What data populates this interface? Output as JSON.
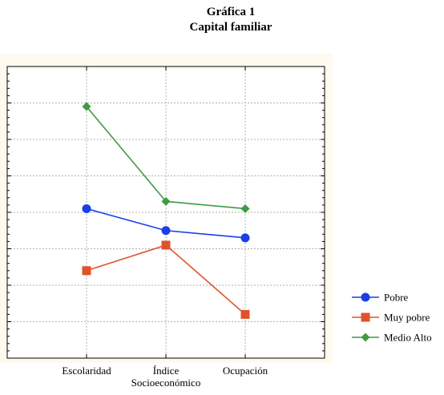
{
  "title": "Gráfica 1",
  "subtitle": "Capital familiar",
  "chart_data": {
    "type": "line",
    "categories": [
      "Escolaridad",
      "Índice Socioeconómico",
      "Ocupación"
    ],
    "category_lines": [
      [
        "Escolaridad"
      ],
      [
        "Índice",
        "Socioeconómico"
      ],
      [
        "Ocupación"
      ]
    ],
    "ylim": [
      0,
      8
    ],
    "grid": true,
    "y_tick_labels_shown": false,
    "legend_position": "right-bottom",
    "series": [
      {
        "name": "Pobre",
        "marker": "circle",
        "color": "#1a3ee8",
        "values": [
          4.1,
          3.5,
          3.3
        ]
      },
      {
        "name": "Muy pobre",
        "marker": "square",
        "color": "#e0522a",
        "values": [
          2.4,
          3.1,
          1.2
        ]
      },
      {
        "name": "Medio Alto",
        "marker": "diamond",
        "color": "#3f9a46",
        "values": [
          6.9,
          4.3,
          4.1
        ]
      }
    ]
  }
}
